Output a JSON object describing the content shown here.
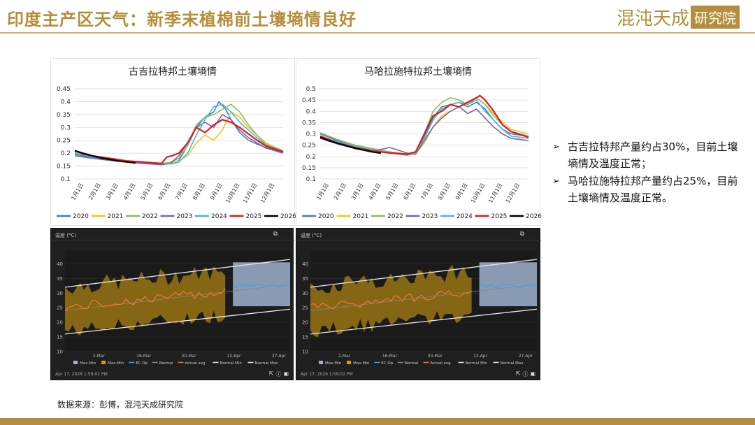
{
  "header": {
    "title": "印度主产区天气：新季末植棉前土壤墒情良好",
    "logo_main": "混沌天成",
    "logo_box": "研究院"
  },
  "bullets": [
    "古吉拉特邦产量约占30%，目前土壤墒情及温度正常；",
    "马哈拉施特拉邦产量约占25%，目前土壤墒情及温度正常。"
  ],
  "source": "数据来源：彭博，混沌天成研究院",
  "colors": {
    "accent": "#b48e3a",
    "2020": "#3f7fc1",
    "2021": "#f5c518",
    "2022": "#8dbf4e",
    "2023": "#7b62a8",
    "2024": "#3dbde0",
    "2025": "#e3191c",
    "2026": "#000000"
  },
  "chart_data": [
    {
      "type": "line",
      "title": "古吉拉特邦土壤墒情",
      "x_ticks": [
        "1月1日",
        "2月1日",
        "3月1日",
        "4月1日",
        "5月1日",
        "6月1日",
        "7月1日",
        "8月1日",
        "9月1日",
        "10月1日",
        "11月1日",
        "12月1日"
      ],
      "ylim": [
        0.1,
        0.45
      ],
      "y_ticks": [
        "0.45",
        "0.4",
        "0.35",
        "0.3",
        "0.25",
        "0.2",
        "0.15",
        "0.1"
      ],
      "series": [
        {
          "name": "2020",
          "month": [
            0,
            1,
            2,
            3,
            4,
            5,
            5.5,
            6,
            6.5,
            7,
            7.5,
            8,
            8.3,
            8.7,
            9,
            9.5,
            10,
            10.5,
            11,
            12
          ],
          "values": [
            0.195,
            0.185,
            0.175,
            0.168,
            0.162,
            0.158,
            0.16,
            0.172,
            0.23,
            0.3,
            0.34,
            0.36,
            0.4,
            0.37,
            0.33,
            0.28,
            0.25,
            0.235,
            0.222,
            0.205
          ]
        },
        {
          "name": "2021",
          "month": [
            0,
            1,
            2,
            3,
            4,
            5,
            5.5,
            6,
            6.5,
            7,
            7.5,
            8,
            8.5,
            9,
            9.5,
            10,
            10.5,
            11,
            12
          ],
          "values": [
            0.2,
            0.19,
            0.18,
            0.17,
            0.165,
            0.16,
            0.163,
            0.17,
            0.19,
            0.24,
            0.27,
            0.25,
            0.29,
            0.36,
            0.34,
            0.3,
            0.27,
            0.24,
            0.21
          ]
        },
        {
          "name": "2022",
          "month": [
            0,
            1,
            2,
            3,
            4,
            5,
            5.5,
            6,
            6.5,
            7,
            7.5,
            8,
            8.5,
            9,
            9.5,
            10,
            10.5,
            11,
            12
          ],
          "values": [
            0.205,
            0.19,
            0.18,
            0.17,
            0.165,
            0.16,
            0.165,
            0.18,
            0.23,
            0.31,
            0.34,
            0.35,
            0.37,
            0.39,
            0.36,
            0.31,
            0.27,
            0.235,
            0.205
          ]
        },
        {
          "name": "2023",
          "month": [
            0,
            1,
            2,
            3,
            4,
            5,
            5.5,
            6,
            6.5,
            7,
            7.5,
            8,
            8.5,
            9,
            9.5,
            10,
            10.5,
            11,
            12
          ],
          "values": [
            0.19,
            0.18,
            0.172,
            0.165,
            0.16,
            0.155,
            0.16,
            0.19,
            0.24,
            0.3,
            0.32,
            0.3,
            0.35,
            0.33,
            0.29,
            0.26,
            0.24,
            0.22,
            0.2
          ]
        },
        {
          "name": "2024",
          "month": [
            0,
            1,
            2,
            3,
            4,
            5,
            5.5,
            6,
            6.5,
            7,
            7.5,
            8,
            8.5,
            9,
            9.5,
            10,
            10.5,
            11,
            12
          ],
          "values": [
            0.2,
            0.188,
            0.178,
            0.17,
            0.165,
            0.16,
            0.158,
            0.165,
            0.2,
            0.27,
            0.33,
            0.38,
            0.39,
            0.36,
            0.32,
            0.29,
            0.26,
            0.23,
            0.21
          ]
        },
        {
          "name": "2025",
          "month": [
            0,
            1,
            2,
            3,
            4,
            5,
            5.3,
            5.6,
            6,
            6.5,
            7,
            7.5,
            8,
            8.5,
            9,
            9.5,
            10,
            10.5,
            11,
            12
          ],
          "values": [
            0.21,
            0.19,
            0.18,
            0.17,
            0.165,
            0.16,
            0.185,
            0.19,
            0.2,
            0.24,
            0.3,
            0.28,
            0.31,
            0.33,
            0.32,
            0.3,
            0.275,
            0.25,
            0.228,
            0.205
          ]
        },
        {
          "name": "2026",
          "month": [
            0,
            0.5,
            1,
            1.5,
            2,
            2.5,
            3,
            3.5
          ],
          "values": [
            0.21,
            0.198,
            0.19,
            0.182,
            0.176,
            0.17,
            0.166,
            0.162
          ]
        }
      ]
    },
    {
      "type": "line",
      "title": "马哈拉施特拉邦土壤墒情",
      "x_ticks": [
        "1月1日",
        "2月1日",
        "3月1日",
        "4月1日",
        "5月1日",
        "6月1日",
        "7月1日",
        "8月1日",
        "9月1日",
        "10月1日",
        "11月1日",
        "12月1日"
      ],
      "ylim": [
        0.1,
        0.5
      ],
      "y_ticks": [
        "0.5",
        "0.45",
        "0.4",
        "0.35",
        "0.3",
        "0.25",
        "0.2",
        "0.15",
        "0.1"
      ],
      "series": [
        {
          "name": "2020",
          "month": [
            0,
            1,
            2,
            3,
            4,
            5,
            5.5,
            6,
            6.5,
            7,
            7.5,
            8,
            8.5,
            9,
            9.5,
            10,
            10.5,
            11,
            12
          ],
          "values": [
            0.3,
            0.27,
            0.25,
            0.235,
            0.22,
            0.21,
            0.22,
            0.29,
            0.37,
            0.42,
            0.43,
            0.44,
            0.42,
            0.44,
            0.41,
            0.36,
            0.32,
            0.3,
            0.29
          ]
        },
        {
          "name": "2021",
          "month": [
            0,
            1,
            2,
            3,
            4,
            5,
            5.5,
            6,
            6.5,
            7,
            7.5,
            8,
            8.5,
            9,
            9.5,
            10,
            10.5,
            11,
            12
          ],
          "values": [
            0.29,
            0.26,
            0.24,
            0.228,
            0.215,
            0.205,
            0.21,
            0.26,
            0.33,
            0.38,
            0.4,
            0.42,
            0.44,
            0.46,
            0.43,
            0.39,
            0.35,
            0.32,
            0.3
          ]
        },
        {
          "name": "2022",
          "month": [
            0,
            1,
            2,
            3,
            4,
            5,
            5.5,
            6,
            6.5,
            7,
            7.5,
            8,
            8.5,
            9,
            9.5,
            10,
            10.5,
            11,
            12
          ],
          "values": [
            0.305,
            0.275,
            0.25,
            0.235,
            0.22,
            0.21,
            0.22,
            0.3,
            0.4,
            0.44,
            0.46,
            0.45,
            0.43,
            0.46,
            0.43,
            0.38,
            0.34,
            0.31,
            0.29
          ]
        },
        {
          "name": "2023",
          "month": [
            0,
            1,
            2,
            3,
            4,
            5,
            5.5,
            6,
            6.5,
            7,
            7.5,
            8,
            8.5,
            9,
            9.5,
            10,
            10.5,
            11,
            12
          ],
          "values": [
            0.28,
            0.255,
            0.235,
            0.222,
            0.24,
            0.215,
            0.21,
            0.27,
            0.33,
            0.37,
            0.4,
            0.42,
            0.39,
            0.41,
            0.37,
            0.33,
            0.3,
            0.28,
            0.27
          ]
        },
        {
          "name": "2024",
          "month": [
            0,
            1,
            2,
            3,
            4,
            5,
            5.5,
            6,
            6.5,
            7,
            7.5,
            8,
            8.5,
            9,
            9.5,
            10,
            10.5,
            11,
            12
          ],
          "values": [
            0.29,
            0.265,
            0.245,
            0.23,
            0.215,
            0.205,
            0.215,
            0.28,
            0.36,
            0.41,
            0.43,
            0.44,
            0.43,
            0.45,
            0.4,
            0.36,
            0.32,
            0.29,
            0.28
          ]
        },
        {
          "name": "2025",
          "month": [
            0,
            1,
            2,
            3,
            4,
            5,
            5.5,
            6,
            6.5,
            7,
            7.5,
            8,
            8.5,
            9,
            9.2,
            9.5,
            10,
            10.5,
            11,
            12
          ],
          "values": [
            0.29,
            0.26,
            0.24,
            0.225,
            0.215,
            0.21,
            0.22,
            0.3,
            0.38,
            0.4,
            0.43,
            0.42,
            0.44,
            0.46,
            0.47,
            0.45,
            0.4,
            0.34,
            0.31,
            0.285
          ]
        },
        {
          "name": "2026",
          "month": [
            0,
            0.5,
            1,
            1.5,
            2,
            2.5,
            3,
            3.5
          ],
          "values": [
            0.285,
            0.27,
            0.258,
            0.247,
            0.236,
            0.228,
            0.22,
            0.214
          ]
        }
      ]
    },
    {
      "type": "area",
      "title": "温度 (°C)",
      "x_ticks": [
        "2-Mar",
        "16-Mar",
        "30-Mar",
        "13-Apr",
        "27-Apr"
      ],
      "y_ticks": [
        "40",
        "35",
        "30",
        "25",
        "20",
        "15",
        "10"
      ],
      "ylim": [
        10,
        42
      ],
      "legend": [
        "Max-Min",
        "Max-Min",
        "EC Op",
        "Normal",
        "Actual avg",
        "Normal Min",
        "Normal Max"
      ],
      "timestamp": "Apr 17, 2026 1:59:02 PM"
    },
    {
      "type": "area",
      "title": "温度 (°C)",
      "x_ticks": [
        "2-Mar",
        "16-Mar",
        "30-Mar",
        "13-Apr",
        "27-Apr"
      ],
      "y_ticks": [
        "40",
        "35",
        "30",
        "25",
        "20",
        "15",
        "10"
      ],
      "ylim": [
        10,
        42
      ],
      "legend": [
        "Max-Min",
        "Max-Min",
        "EC Op",
        "Normal",
        "Actual avg",
        "Normal Min",
        "Normal Max"
      ],
      "timestamp": "Apr 17, 2026 1:59:02 PM"
    }
  ]
}
